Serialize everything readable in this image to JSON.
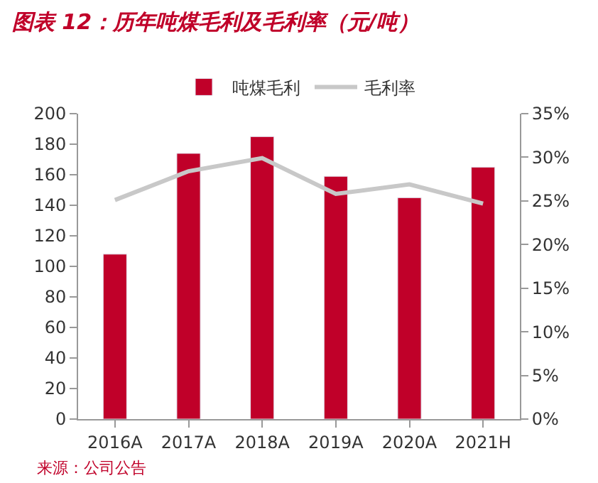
{
  "chart_data": {
    "type": "bar",
    "title": "图表 12：历年吨煤毛利及毛利率（元/吨）",
    "categories": [
      "2016A",
      "2017A",
      "2018A",
      "2019A",
      "2020A",
      "2021H"
    ],
    "series": [
      {
        "name": "吨煤毛利",
        "color": "#c00029",
        "values": [
          108,
          174,
          185,
          159,
          145,
          165
        ]
      },
      {
        "name": "毛利率",
        "type": "line",
        "axis": "y2",
        "color": "#c8c8c8",
        "marker": "none",
        "values": [
          25.1,
          28.4,
          29.9,
          25.8,
          26.9,
          24.7
        ]
      }
    ],
    "ylim": [
      0,
      200
    ],
    "yticks": [
      0,
      20,
      40,
      60,
      80,
      100,
      120,
      140,
      160,
      180,
      200
    ],
    "y2lim": [
      0,
      35
    ],
    "y2ticks": [
      {
        "value": 0,
        "label": "0%"
      },
      {
        "value": 5,
        "label": "5%"
      },
      {
        "value": 10,
        "label": "10%"
      },
      {
        "value": 15,
        "label": "15%"
      },
      {
        "value": 20,
        "label": "20%"
      },
      {
        "value": 25,
        "label": "25%"
      },
      {
        "value": 30,
        "label": "30%"
      },
      {
        "value": 35,
        "label": "35%"
      }
    ],
    "legend": "top",
    "annotations": [
      "来源：公司公告"
    ]
  }
}
